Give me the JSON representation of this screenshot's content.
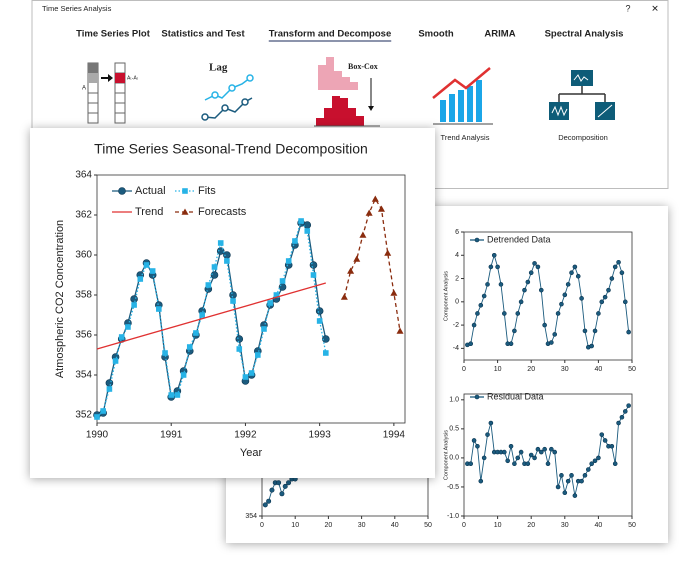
{
  "window": {
    "title": "Time Series Analysis",
    "help": "?",
    "close": "✕"
  },
  "tabs": {
    "items": [
      "Time Series Plot",
      "Statistics and Test",
      "Transform and Decompose",
      "Smooth",
      "ARIMA",
      "Spectral Analysis"
    ],
    "active": 2
  },
  "icons": {
    "diff_a": "A",
    "diff_b": "Aₜ-Aₜ",
    "lag": "Lag",
    "boxcox": "Box-Cox",
    "trend": "Trend Analysis",
    "decomp": "Decomposition"
  },
  "chart_data": [
    {
      "type": "line",
      "title": "Time Series Seasonal-Trend Decomposition",
      "xlabel": "Year",
      "ylabel": "Atmospheric CO2 Concentration",
      "x": [
        1990,
        1990.083,
        1990.167,
        1990.25,
        1990.333,
        1990.417,
        1990.5,
        1990.583,
        1990.667,
        1990.75,
        1990.833,
        1990.917,
        1991,
        1991.083,
        1991.167,
        1991.25,
        1991.333,
        1991.417,
        1991.5,
        1991.583,
        1991.667,
        1991.75,
        1991.833,
        1991.917,
        1992,
        1992.083,
        1992.167,
        1992.25,
        1992.333,
        1992.417,
        1992.5,
        1992.583,
        1992.667,
        1992.75,
        1992.833,
        1992.917,
        1993,
        1993.083
      ],
      "series": [
        {
          "name": "Actual",
          "color": "#1b5b7e",
          "marker": "circle",
          "dash": "none",
          "values": [
            352.0,
            352.1,
            353.6,
            354.9,
            355.8,
            356.6,
            357.8,
            359.0,
            359.6,
            359.0,
            357.5,
            354.9,
            352.9,
            353.2,
            354.2,
            355.2,
            356.0,
            357.2,
            358.3,
            359.0,
            360.2,
            360.0,
            358.0,
            355.8,
            353.7,
            354.0,
            355.2,
            356.5,
            357.5,
            357.8,
            358.4,
            359.5,
            360.5,
            361.6,
            361.5,
            359.5,
            357.2,
            355.8
          ]
        },
        {
          "name": "Fits",
          "color": "#27b3e6",
          "marker": "square",
          "dash": "dot",
          "values": [
            351.9,
            352.2,
            353.3,
            354.7,
            355.9,
            356.4,
            357.5,
            358.8,
            359.5,
            359.2,
            357.3,
            355.1,
            353.0,
            353.0,
            354.0,
            355.4,
            356.1,
            357.0,
            358.5,
            359.4,
            360.6,
            359.7,
            357.7,
            355.3,
            353.9,
            354.1,
            355.0,
            356.3,
            357.6,
            358.0,
            358.7,
            359.7,
            360.7,
            361.7,
            361.2,
            359.0,
            356.7,
            355.1
          ]
        },
        {
          "name": "Trend",
          "color": "#e03131",
          "marker": "none",
          "dash": "none",
          "x": [
            1990,
            1993.083
          ],
          "values": [
            355.3,
            358.6
          ]
        },
        {
          "name": "Forecasts",
          "color": "#8a2c0e",
          "marker": "triangle",
          "dash": "dash",
          "x": [
            1993.333,
            1993.417,
            1993.5,
            1993.583,
            1993.667,
            1993.75,
            1993.833,
            1993.917,
            1994.0,
            1994.083
          ],
          "values": [
            357.9,
            359.2,
            359.8,
            361.0,
            362.1,
            362.8,
            362.3,
            360.1,
            358.1,
            356.2
          ]
        }
      ],
      "xlim": [
        1990,
        1994.15
      ],
      "xticks": [
        1990,
        1991,
        1992,
        1993,
        1994
      ],
      "ylim": [
        351.6,
        364
      ],
      "yticks": [
        352,
        354,
        356,
        358,
        360,
        362,
        364
      ],
      "legend": "upper left"
    },
    {
      "type": "line",
      "ylabel": "Component Analysis",
      "x": [
        1,
        2,
        3,
        4,
        5,
        6,
        7,
        8,
        9,
        10,
        11,
        12,
        13,
        14,
        15,
        16,
        17,
        18,
        19,
        20,
        21,
        22,
        23,
        24,
        25,
        26,
        27,
        28,
        29,
        30,
        31,
        32,
        33,
        34,
        35,
        36,
        37,
        38,
        39,
        40,
        41,
        42,
        43,
        44,
        45,
        46,
        47,
        48,
        49
      ],
      "series": [
        {
          "name": "Detrended Data",
          "color": "#1b5b7e",
          "marker": "circle",
          "dash": "none",
          "values": [
            -3.7,
            -3.6,
            -2,
            -1,
            -0.3,
            0.5,
            1.5,
            3,
            4,
            3,
            1.5,
            -1,
            -3.6,
            -3.6,
            -2.5,
            -1,
            0,
            1,
            1.7,
            2.5,
            3.3,
            3,
            1,
            -2,
            -3.6,
            -3.5,
            -2.8,
            -1,
            -0.2,
            0.6,
            1.5,
            2.5,
            3,
            2.2,
            0.3,
            -2.5,
            -3.9,
            -3.8,
            -2.5,
            -1,
            0,
            0.4,
            1,
            2,
            3,
            3.4,
            2.5,
            0,
            -2.6
          ]
        }
      ],
      "xlim": [
        0,
        50
      ],
      "xticks": [
        0,
        10,
        20,
        30,
        40,
        50
      ],
      "ylim": [
        -5,
        6
      ],
      "yticks": [
        -4,
        -2,
        0,
        2,
        4,
        6
      ],
      "legend": "upper left"
    },
    {
      "type": "line",
      "ylabel": "Component Analysis",
      "x": [
        1,
        2,
        3,
        4,
        5,
        6,
        7,
        8,
        9,
        10,
        11,
        12,
        13,
        14,
        15,
        16,
        17,
        18,
        19,
        20,
        21,
        22,
        23,
        24,
        25,
        26,
        27,
        28,
        29,
        30,
        31,
        32,
        33,
        34,
        35,
        36,
        37,
        38,
        39,
        40,
        41,
        42,
        43,
        44,
        45,
        46,
        47,
        48,
        49
      ],
      "series": [
        {
          "name": "Residual Data",
          "color": "#1b5b7e",
          "marker": "circle",
          "dash": "none",
          "values": [
            -0.1,
            -0.1,
            0.3,
            0.2,
            -0.4,
            0,
            0.4,
            0.6,
            0.1,
            0.1,
            0.1,
            0.1,
            -0.05,
            0.2,
            -0.1,
            0,
            0.1,
            -0.1,
            -0.1,
            0.05,
            0,
            0.15,
            0.1,
            0.15,
            -0.1,
            0.15,
            0.1,
            -0.5,
            -0.3,
            -0.6,
            -0.4,
            -0.3,
            -0.65,
            -0.4,
            -0.4,
            -0.3,
            -0.2,
            -0.1,
            -0.05,
            0,
            0.4,
            0.3,
            0.2,
            0.2,
            -0.1,
            0.6,
            0.7,
            0.8,
            0.9
          ]
        }
      ],
      "xlim": [
        0,
        50
      ],
      "xticks": [
        0,
        10,
        20,
        30,
        40,
        50
      ],
      "ylim": [
        -1,
        1.1
      ],
      "yticks": [
        {
          "value": -1,
          "label": "-1.0"
        },
        {
          "value": -0.5,
          "label": "-0.5"
        },
        {
          "value": 0,
          "label": "0.0"
        },
        {
          "value": 0.5,
          "label": "0.5"
        },
        {
          "value": 1,
          "label": "1.0"
        }
      ],
      "legend": "upper left"
    },
    {
      "type": "line",
      "x": [
        1,
        2,
        3,
        4,
        5,
        6,
        7,
        8,
        9,
        10,
        11,
        12,
        13,
        14,
        15,
        16,
        17,
        18,
        19,
        20
      ],
      "series": [
        {
          "color": "#1b5b7e",
          "marker": "circle",
          "dash": "none",
          "values": [
            354.3,
            354.4,
            354.7,
            354.9,
            354.9,
            354.6,
            354.8,
            354.9,
            355.0,
            355.0,
            355.1,
            355.2,
            355.1,
            355.2,
            355.3,
            355.2,
            355.3,
            355.3,
            355.4,
            355.4
          ]
        }
      ],
      "xlim": [
        0,
        50
      ],
      "xticks": [
        0,
        10,
        20,
        30,
        40,
        50
      ],
      "ylim": [
        354,
        362
      ],
      "yticks": [
        354
      ]
    }
  ]
}
